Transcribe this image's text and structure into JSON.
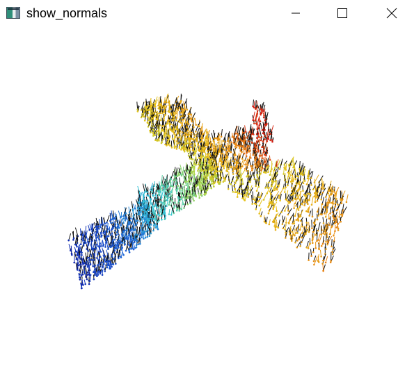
{
  "window": {
    "title": "show_normals",
    "icons": {
      "app": "app-window-icon",
      "minimize": "minimize-icon",
      "maximize": "maximize-icon",
      "close": "close-icon"
    }
  },
  "viewport": {
    "background": "#ffffff",
    "colormap": [
      "#0b1fa8",
      "#1f5fd6",
      "#35c6d6",
      "#a9d64a",
      "#e6c21a",
      "#e88a14",
      "#d11a10"
    ],
    "normal_color": "#111111"
  }
}
